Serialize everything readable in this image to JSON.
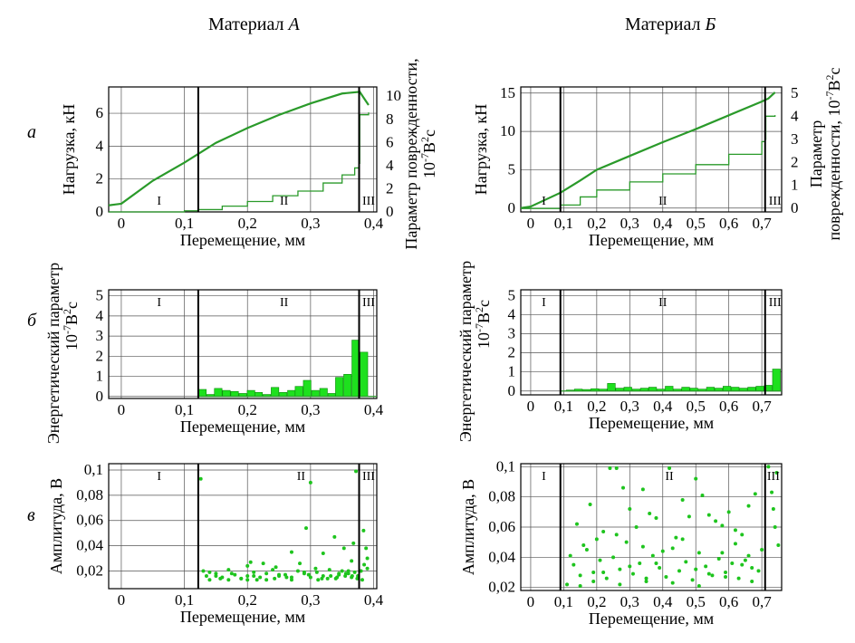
{
  "columns": [
    {
      "title_prefix": "Материал ",
      "title_letter": "А"
    },
    {
      "title_prefix": "Материал ",
      "title_letter": "Б"
    }
  ],
  "rows": [
    "а",
    "б",
    "в"
  ],
  "colors": {
    "curve": "#2a9a2a",
    "bars": "#1ee01e",
    "dots": "#1ec41e",
    "frame": "#000000"
  },
  "chart_data": [
    {
      "id": "load-A",
      "type": "line",
      "material": "А",
      "row": "а",
      "xlabel": "Перемещение, мм",
      "ylabel": "Нагрузка, кН",
      "y2label_lines": [
        "Параметр поврежденности,",
        "10-7В2с"
      ],
      "xlim": [
        -0.02,
        0.405
      ],
      "ylim": [
        0,
        7.6
      ],
      "y2lim": [
        0,
        10.8
      ],
      "x_ticks": [
        0,
        0.1,
        0.2,
        0.3,
        0.4
      ],
      "x_tick_labels": [
        "0",
        "0,1",
        "0,2",
        "0,3",
        "0,4"
      ],
      "y_ticks": [
        0,
        2,
        4,
        6
      ],
      "y_tick_labels": [
        "0",
        "2",
        "4",
        "6"
      ],
      "y2_ticks": [
        0,
        2,
        4,
        6,
        8,
        10
      ],
      "y2_tick_labels": [
        "0",
        "2",
        "4",
        "6",
        "8",
        "10"
      ],
      "boundaries": [
        0.122,
        0.377
      ],
      "zones": [
        {
          "label": "I",
          "x": 0.06
        },
        {
          "label": "II",
          "x": 0.258
        },
        {
          "label": "III",
          "x": 0.392
        }
      ],
      "series": [
        {
          "axis": "left",
          "x": [
            -0.02,
            0.0,
            0.05,
            0.1,
            0.15,
            0.2,
            0.25,
            0.3,
            0.35,
            0.378,
            0.385,
            0.392
          ],
          "y": [
            0.4,
            0.5,
            1.9,
            3.0,
            4.2,
            5.1,
            5.9,
            6.6,
            7.2,
            7.3,
            6.9,
            6.5
          ]
        },
        {
          "axis": "right",
          "x": [
            -0.02,
            0.0,
            0.1,
            0.122,
            0.16,
            0.2,
            0.24,
            0.28,
            0.32,
            0.35,
            0.37,
            0.377,
            0.378,
            0.392
          ],
          "y": [
            0.0,
            0.0,
            0.1,
            0.2,
            0.5,
            0.9,
            1.4,
            1.8,
            2.5,
            3.2,
            3.8,
            4.2,
            8.4,
            8.6
          ]
        }
      ]
    },
    {
      "id": "load-B",
      "type": "line",
      "material": "Б",
      "row": "а",
      "xlabel": "Перемещение, мм",
      "ylabel": "Нагрузка, кН",
      "y2label_lines": [
        "Параметр",
        "поврежденности, 10-7В2с"
      ],
      "xlim": [
        -0.03,
        0.76
      ],
      "ylim": [
        -0.5,
        15.8
      ],
      "y2lim": [
        -0.15,
        5.27
      ],
      "x_ticks": [
        0,
        0.1,
        0.2,
        0.3,
        0.4,
        0.5,
        0.6,
        0.7
      ],
      "x_tick_labels": [
        "0",
        "0,1",
        "0,2",
        "0,3",
        "0,4",
        "0,5",
        "0,6",
        "0,7"
      ],
      "y_ticks": [
        0,
        5,
        10,
        15
      ],
      "y_tick_labels": [
        "0",
        "5",
        "10",
        "15"
      ],
      "y2_ticks": [
        0,
        1,
        2,
        3,
        4,
        5
      ],
      "y2_tick_labels": [
        "0",
        "1",
        "2",
        "3",
        "4",
        "5"
      ],
      "boundaries": [
        0.09,
        0.71
      ],
      "zones": [
        {
          "label": "I",
          "x": 0.04
        },
        {
          "label": "II",
          "x": 0.4
        },
        {
          "label": "III",
          "x": 0.74
        }
      ],
      "series": [
        {
          "axis": "left",
          "x": [
            -0.03,
            0.0,
            0.09,
            0.15,
            0.2,
            0.3,
            0.4,
            0.5,
            0.6,
            0.7,
            0.72,
            0.74
          ],
          "y": [
            0.0,
            0.2,
            2.0,
            3.6,
            5.0,
            6.8,
            8.6,
            10.3,
            12.1,
            13.9,
            14.3,
            15.1
          ]
        },
        {
          "axis": "right",
          "x": [
            -0.03,
            0.0,
            0.09,
            0.15,
            0.2,
            0.3,
            0.4,
            0.5,
            0.6,
            0.7,
            0.71,
            0.712,
            0.74
          ],
          "y": [
            0.0,
            0.0,
            0.15,
            0.5,
            0.8,
            1.15,
            1.5,
            1.9,
            2.35,
            2.9,
            3.0,
            4.0,
            4.05
          ]
        }
      ]
    },
    {
      "id": "energy-A",
      "type": "bar",
      "material": "А",
      "row": "б",
      "xlabel": "Перемещение, мм",
      "ylabel": "Энергетический параметр",
      "ylabel2_lines": [
        "10-7В2с"
      ],
      "xlim": [
        -0.02,
        0.405
      ],
      "ylim": [
        -0.1,
        5.3
      ],
      "x_ticks": [
        0,
        0.1,
        0.2,
        0.3,
        0.4
      ],
      "x_tick_labels": [
        "0",
        "0,1",
        "0,2",
        "0,3",
        "0,4"
      ],
      "y_ticks": [
        0,
        1,
        2,
        3,
        4,
        5
      ],
      "y_tick_labels": [
        "0",
        "1",
        "2",
        "3",
        "4",
        "5"
      ],
      "boundaries": [
        0.122,
        0.377
      ],
      "zones": [
        {
          "label": "I",
          "x": 0.06
        },
        {
          "label": "II",
          "x": 0.258
        },
        {
          "label": "III",
          "x": 0.392
        }
      ],
      "bar_width": 0.0128,
      "x": [
        0.129,
        0.142,
        0.154,
        0.167,
        0.18,
        0.193,
        0.206,
        0.218,
        0.231,
        0.244,
        0.257,
        0.27,
        0.282,
        0.295,
        0.308,
        0.321,
        0.334,
        0.346,
        0.359,
        0.372,
        0.385
      ],
      "values": [
        0.35,
        0.1,
        0.4,
        0.3,
        0.25,
        0.15,
        0.3,
        0.2,
        0.1,
        0.45,
        0.2,
        0.3,
        0.5,
        0.8,
        0.3,
        0.4,
        0.15,
        0.95,
        1.1,
        2.8,
        2.2
      ]
    },
    {
      "id": "energy-B",
      "type": "bar",
      "material": "Б",
      "row": "б",
      "xlabel": "Перемещение, мм",
      "ylabel": "Энергетический параметр",
      "ylabel2_lines": [
        "10-7В2с"
      ],
      "xlim": [
        -0.03,
        0.76
      ],
      "ylim": [
        -0.2,
        5.3
      ],
      "x_ticks": [
        0,
        0.1,
        0.2,
        0.3,
        0.4,
        0.5,
        0.6,
        0.7
      ],
      "x_tick_labels": [
        "0",
        "0,1",
        "0,2",
        "0,3",
        "0,4",
        "0,5",
        "0,6",
        "0,7"
      ],
      "y_ticks": [
        0,
        1,
        2,
        3,
        4,
        5
      ],
      "y_tick_labels": [
        "0",
        "1",
        "2",
        "3",
        "4",
        "5"
      ],
      "boundaries": [
        0.09,
        0.71
      ],
      "zones": [
        {
          "label": "I",
          "x": 0.04
        },
        {
          "label": "II",
          "x": 0.4
        },
        {
          "label": "III",
          "x": 0.74
        }
      ],
      "bar_width": 0.025,
      "x": [
        0.12,
        0.145,
        0.17,
        0.195,
        0.22,
        0.245,
        0.27,
        0.295,
        0.32,
        0.345,
        0.37,
        0.395,
        0.42,
        0.445,
        0.47,
        0.495,
        0.52,
        0.545,
        0.57,
        0.595,
        0.62,
        0.645,
        0.67,
        0.695,
        0.72,
        0.745
      ],
      "values": [
        0.05,
        0.1,
        0.08,
        0.12,
        0.1,
        0.4,
        0.15,
        0.2,
        0.1,
        0.15,
        0.2,
        0.1,
        0.25,
        0.1,
        0.2,
        0.15,
        0.1,
        0.2,
        0.15,
        0.25,
        0.2,
        0.15,
        0.2,
        0.25,
        0.3,
        1.15
      ]
    },
    {
      "id": "ampl-A",
      "type": "scatter",
      "material": "А",
      "row": "в",
      "xlabel": "Перемещение, мм",
      "ylabel": "Амплитуда, В",
      "xlim": [
        -0.02,
        0.405
      ],
      "ylim": [
        0.006,
        0.105
      ],
      "x_ticks": [
        0,
        0.1,
        0.2,
        0.3,
        0.4
      ],
      "x_tick_labels": [
        "0",
        "0,1",
        "0,2",
        "0,3",
        "0,4"
      ],
      "y_ticks": [
        0.02,
        0.04,
        0.06,
        0.08,
        0.1
      ],
      "y_tick_labels": [
        "0,02",
        "0,04",
        "0,06",
        "0,08",
        "0,1"
      ],
      "boundaries": [
        0.122,
        0.377
      ],
      "zones": [
        {
          "label": "I",
          "x": 0.06
        },
        {
          "label": "II",
          "x": 0.285
        },
        {
          "label": "III",
          "x": 0.392
        }
      ],
      "x": [
        0.126,
        0.13,
        0.135,
        0.14,
        0.15,
        0.16,
        0.17,
        0.18,
        0.19,
        0.2,
        0.205,
        0.21,
        0.22,
        0.23,
        0.24,
        0.25,
        0.26,
        0.27,
        0.28,
        0.29,
        0.3,
        0.31,
        0.32,
        0.33,
        0.34,
        0.345,
        0.35,
        0.355,
        0.36,
        0.365,
        0.37,
        0.375,
        0.38,
        0.385,
        0.39,
        0.157,
        0.175,
        0.2,
        0.225,
        0.245,
        0.27,
        0.293,
        0.3,
        0.32,
        0.338,
        0.353,
        0.365,
        0.372,
        0.368,
        0.384,
        0.388,
        0.39,
        0.36,
        0.345,
        0.332,
        0.318,
        0.308,
        0.29,
        0.27,
        0.25,
        0.23,
        0.21,
        0.19,
        0.17,
        0.15,
        0.14,
        0.2,
        0.215,
        0.243,
        0.262,
        0.283,
        0.297,
        0.312,
        0.327,
        0.342,
        0.356,
        0.366,
        0.374,
        0.382
      ],
      "y": [
        0.093,
        0.02,
        0.016,
        0.019,
        0.018,
        0.015,
        0.021,
        0.017,
        0.014,
        0.016,
        0.027,
        0.019,
        0.015,
        0.018,
        0.021,
        0.016,
        0.017,
        0.013,
        0.02,
        0.018,
        0.015,
        0.019,
        0.016,
        0.021,
        0.014,
        0.017,
        0.02,
        0.016,
        0.018,
        0.015,
        0.019,
        0.016,
        0.02,
        0.025,
        0.03,
        0.014,
        0.018,
        0.024,
        0.026,
        0.023,
        0.035,
        0.054,
        0.09,
        0.034,
        0.047,
        0.038,
        0.028,
        0.099,
        0.042,
        0.052,
        0.038,
        0.022,
        0.02,
        0.018,
        0.016,
        0.014,
        0.022,
        0.019,
        0.015,
        0.017,
        0.013,
        0.016,
        0.014,
        0.013,
        0.016,
        0.013,
        0.013,
        0.013,
        0.014,
        0.015,
        0.026,
        0.017,
        0.013,
        0.014,
        0.015,
        0.018,
        0.016,
        0.014,
        0.013
      ]
    },
    {
      "id": "ampl-B",
      "type": "scatter",
      "material": "Б",
      "row": "в",
      "xlabel": "Перемещение, мм",
      "ylabel": "Амплитуда, В",
      "xlim": [
        -0.03,
        0.76
      ],
      "ylim": [
        0.018,
        0.102
      ],
      "x_ticks": [
        0,
        0.1,
        0.2,
        0.3,
        0.4,
        0.5,
        0.6,
        0.7
      ],
      "x_tick_labels": [
        "0",
        "0,1",
        "0,2",
        "0,3",
        "0,4",
        "0,5",
        "0,6",
        "0,7"
      ],
      "y_ticks": [
        0.02,
        0.04,
        0.06,
        0.08,
        0.1
      ],
      "y_tick_labels": [
        "0,02",
        "0,04",
        "0,06",
        "0,08",
        "0,1"
      ],
      "boundaries": [
        0.09,
        0.71
      ],
      "zones": [
        {
          "label": "I",
          "x": 0.04
        },
        {
          "label": "II",
          "x": 0.42
        },
        {
          "label": "III",
          "x": 0.735
        }
      ],
      "x": [
        0.11,
        0.13,
        0.15,
        0.17,
        0.19,
        0.21,
        0.23,
        0.25,
        0.27,
        0.29,
        0.31,
        0.33,
        0.35,
        0.37,
        0.39,
        0.41,
        0.43,
        0.45,
        0.47,
        0.49,
        0.51,
        0.53,
        0.55,
        0.57,
        0.59,
        0.61,
        0.63,
        0.65,
        0.67,
        0.69,
        0.14,
        0.18,
        0.22,
        0.26,
        0.3,
        0.34,
        0.38,
        0.42,
        0.46,
        0.5,
        0.54,
        0.58,
        0.62,
        0.66,
        0.7,
        0.24,
        0.28,
        0.36,
        0.44,
        0.52,
        0.56,
        0.6,
        0.64,
        0.16,
        0.2,
        0.32,
        0.4,
        0.48,
        0.68,
        0.12,
        0.26,
        0.34,
        0.46,
        0.58,
        0.62,
        0.66,
        0.22,
        0.3,
        0.38,
        0.5,
        0.54,
        0.64,
        0.15,
        0.19,
        0.27,
        0.35,
        0.43,
        0.51,
        0.59,
        0.67,
        0.72,
        0.73,
        0.74,
        0.75,
        0.745,
        0.735
      ],
      "y": [
        0.022,
        0.035,
        0.028,
        0.045,
        0.03,
        0.038,
        0.026,
        0.04,
        0.032,
        0.05,
        0.029,
        0.036,
        0.024,
        0.041,
        0.033,
        0.027,
        0.046,
        0.031,
        0.037,
        0.025,
        0.043,
        0.034,
        0.028,
        0.039,
        0.03,
        0.036,
        0.026,
        0.038,
        0.033,
        0.031,
        0.062,
        0.075,
        0.057,
        0.099,
        0.072,
        0.085,
        0.066,
        0.099,
        0.078,
        0.092,
        0.068,
        0.061,
        0.058,
        0.074,
        0.045,
        0.099,
        0.086,
        0.069,
        0.053,
        0.081,
        0.064,
        0.07,
        0.055,
        0.048,
        0.052,
        0.06,
        0.044,
        0.067,
        0.082,
        0.041,
        0.055,
        0.047,
        0.052,
        0.043,
        0.049,
        0.041,
        0.03,
        0.034,
        0.036,
        0.032,
        0.029,
        0.035,
        0.021,
        0.024,
        0.022,
        0.026,
        0.023,
        0.021,
        0.027,
        0.024,
        0.1,
        0.083,
        0.06,
        0.048,
        0.096,
        0.072
      ]
    }
  ]
}
